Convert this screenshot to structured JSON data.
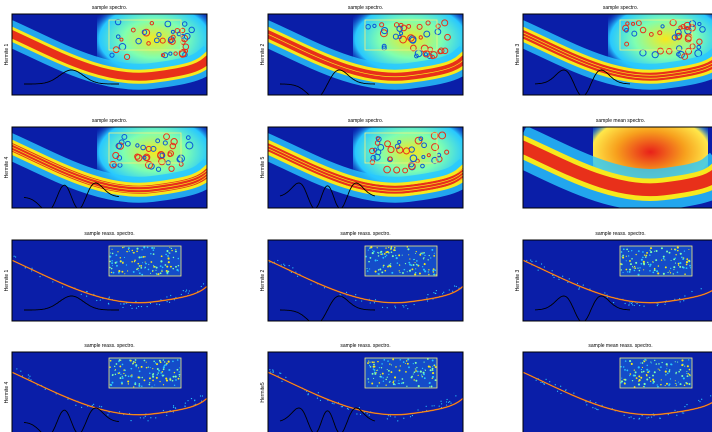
{
  "panels": [
    {
      "title": "sample spectro.",
      "ylabel": "Hermite 1"
    },
    {
      "title": "sample spectro.",
      "ylabel": "Hermite 2"
    },
    {
      "title": "sample spectro.",
      "ylabel": "Hermite 3"
    },
    {
      "title": "sample spectro.",
      "ylabel": "Hermite 4"
    },
    {
      "title": "sample spectro.",
      "ylabel": "Hermite 5"
    },
    {
      "title": "sample mean spectro."
    },
    {
      "title": "sample reass. spectro.",
      "ylabel": "Hermite 1"
    },
    {
      "title": "sample reass. spectro.",
      "ylabel": "Hermite 2"
    },
    {
      "title": "sample reass. spectro.",
      "ylabel": "Hermite 3"
    },
    {
      "title": "sample reass. spectro.",
      "ylabel": "Hermite 4"
    },
    {
      "title": "sample reass. spectro.",
      "ylabel": "Hermite5"
    },
    {
      "title": "sample mean reass. spectro."
    }
  ]
}
